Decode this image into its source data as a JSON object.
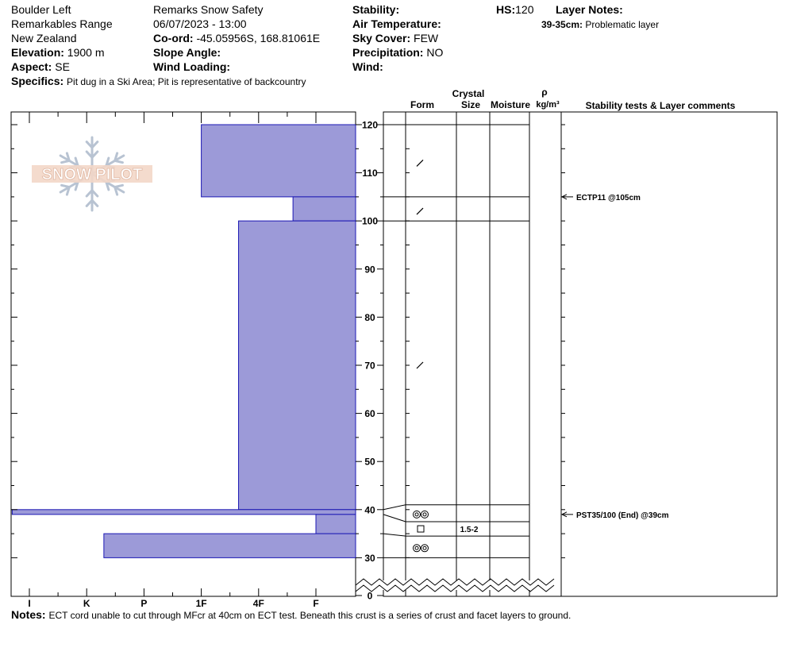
{
  "header": {
    "location": "Boulder Left",
    "range": "Remarkables Range",
    "country": "New Zealand",
    "elevation_label": "Elevation:",
    "elevation_value": "1900 m",
    "aspect_label": "Aspect:",
    "aspect_value": "SE",
    "specifics_label": "Specifics:",
    "specifics_value": "Pit dug in a Ski Area; Pit is representative of backcountry",
    "observer": "Remarks Snow Safety",
    "datetime": "06/07/2023 - 13:00",
    "coord_label": "Co-ord:",
    "coord_value": "-45.05956S, 168.81061E",
    "slope_label": "Slope Angle:",
    "wind_loading_label": "Wind Loading:",
    "stability_label": "Stability:",
    "air_temp_label": "Air Temperature:",
    "sky_label": "Sky Cover:",
    "sky_value": "FEW",
    "precip_label": "Precipitation:",
    "precip_value": "NO",
    "wind_label": "Wind:",
    "hs_label": "HS:",
    "hs_value": "120",
    "layer_notes_label": "Layer Notes:",
    "layer_note_range": "39-35cm:",
    "layer_note_text": "Problematic layer"
  },
  "logo": {
    "text": "SNOW PILOT"
  },
  "columns": {
    "crystal": "Crystal",
    "form": "Form",
    "size": "Size",
    "moisture": "Moisture",
    "rho": "ρ",
    "density_unit": "kg/m³",
    "stability": "Stability tests & Layer comments"
  },
  "notes": {
    "label": "Notes:",
    "text": "ECT cord unable to cut through MFcr at 40cm on ECT test. Beneath this crust is a series of crust and facet layers to ground."
  },
  "chart_data": {
    "type": "snow-profile",
    "hardness_categories": [
      "I",
      "K",
      "P",
      "1F",
      "4F",
      "F"
    ],
    "depth_ticks": [
      120,
      110,
      100,
      90,
      80,
      70,
      60,
      50,
      40,
      30,
      0
    ],
    "depth_unit": "cm",
    "hs": 120,
    "hardness_layers": [
      {
        "top": 120,
        "bottom": 105,
        "hardness": 3.0
      },
      {
        "top": 105,
        "bottom": 100,
        "hardness": 4.6
      },
      {
        "top": 100,
        "bottom": 40,
        "hardness": 3.65
      },
      {
        "top": 40,
        "bottom": 39,
        "hardness": -0.3
      },
      {
        "top": 39,
        "bottom": 35,
        "hardness": 5.0
      },
      {
        "top": 35,
        "bottom": 30,
        "hardness": 1.3
      }
    ],
    "layer_boundaries": [
      120,
      105,
      100,
      41,
      37.5,
      34.5,
      30
    ],
    "crystal_forms": [
      {
        "depth": 112,
        "symbol": "slash"
      },
      {
        "depth": 102,
        "symbol": "slash"
      },
      {
        "depth": 70,
        "symbol": "slash"
      },
      {
        "depth": 39,
        "symbol": "double-circle"
      },
      {
        "depth": 36,
        "symbol": "square"
      },
      {
        "depth": 32,
        "symbol": "double-circle"
      }
    ],
    "crystal_sizes": [
      {
        "depth": 36,
        "size": "1.5-2"
      }
    ],
    "stability_tests": [
      {
        "depth": 105,
        "label": "ECTP11 @105cm"
      },
      {
        "depth": 39,
        "label": "PST35/100 (End) @39cm"
      }
    ]
  }
}
